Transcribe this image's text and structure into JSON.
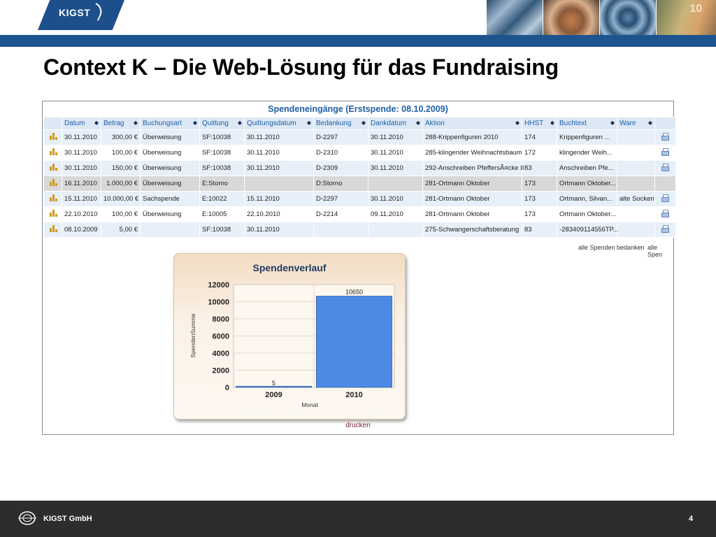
{
  "header": {
    "logo_text": "KIGST",
    "photo_number": "10",
    "title": "Context K – Die Web-Lösung für das Fundraising"
  },
  "table": {
    "title": "Spendeneingänge (Erstspende: 08.10.2009)",
    "columns": [
      "Datum",
      "Betrag",
      "Buchungsart",
      "Quittung",
      "Quittungsdatum",
      "Bedankung",
      "Dankdatum",
      "Aktion",
      "HHST",
      "Buchtext",
      "Ware"
    ],
    "sort_glyph": "◆",
    "rows": [
      [
        "30.11.2010",
        "300,00 €",
        "Überweisung",
        "SF:10038",
        "30.11.2010",
        "D-2297",
        "30.11.2010",
        "288-Krippenfiguren 2010",
        "174",
        "Krippenfiguren ...",
        ""
      ],
      [
        "30.11.2010",
        "100,00 €",
        "Überweisung",
        "SF:10038",
        "30.11.2010",
        "D-2310",
        "30.11.2010",
        "285-klingender Weihnachtsbaum",
        "172",
        "klingender Weih...",
        ""
      ],
      [
        "30.11.2010",
        "150,00 €",
        "Überweisung",
        "SF:10038",
        "30.11.2010",
        "D-2309",
        "30.11.2010",
        "292-Anschreiben PfeffersÃ¤cke II",
        "83",
        "Anschreiben Pfe...",
        ""
      ],
      [
        "16.11.2010",
        "1.000,00 €",
        "Überweisung",
        "E:Storno",
        "",
        "D:Storno",
        "",
        "281-Ortmann Oktober",
        "173",
        "Ortmann Oktober...",
        ""
      ],
      [
        "15.11.2010",
        "10.000,00 €",
        "Sachspende",
        "E:10022",
        "15.11.2010",
        "D-2297",
        "30.11.2010",
        "281-Ortmann Oktober",
        "173",
        "Ortmann, Silvan...",
        "alte Socken"
      ],
      [
        "22.10.2010",
        "100,00 €",
        "Überweisung",
        "E:10005",
        "22.10.2010",
        "D-2214",
        "09.11.2010",
        "281-Ortmann Oktober",
        "173",
        "Ortmann Oktober...",
        ""
      ],
      [
        "08.10.2009",
        "5,00 €",
        "",
        "SF:10038",
        "30.11.2010",
        "",
        "",
        "275-Schwangerschaftsberatung",
        "83",
        "-283409114556TP...",
        ""
      ]
    ],
    "storno_row": 3,
    "link_thank": "alle Spenden bedanken",
    "link_thank_all": "alle Spen"
  },
  "chart_data": {
    "type": "bar",
    "title": "Spendenverlauf",
    "xlabel": "Monat",
    "ylabel": "SpendenSumme",
    "categories": [
      "2009",
      "2010"
    ],
    "values": [
      5,
      10650
    ],
    "data_labels": [
      "5",
      "10650"
    ],
    "ylim": [
      0,
      12000
    ],
    "yticks": [
      0,
      2000,
      4000,
      6000,
      8000,
      10000,
      12000
    ],
    "bar_color": "#4d8ae6",
    "grid": true
  },
  "print_label": "drucken",
  "footer": {
    "company": "KIGST GmbH",
    "page_number": "4"
  }
}
